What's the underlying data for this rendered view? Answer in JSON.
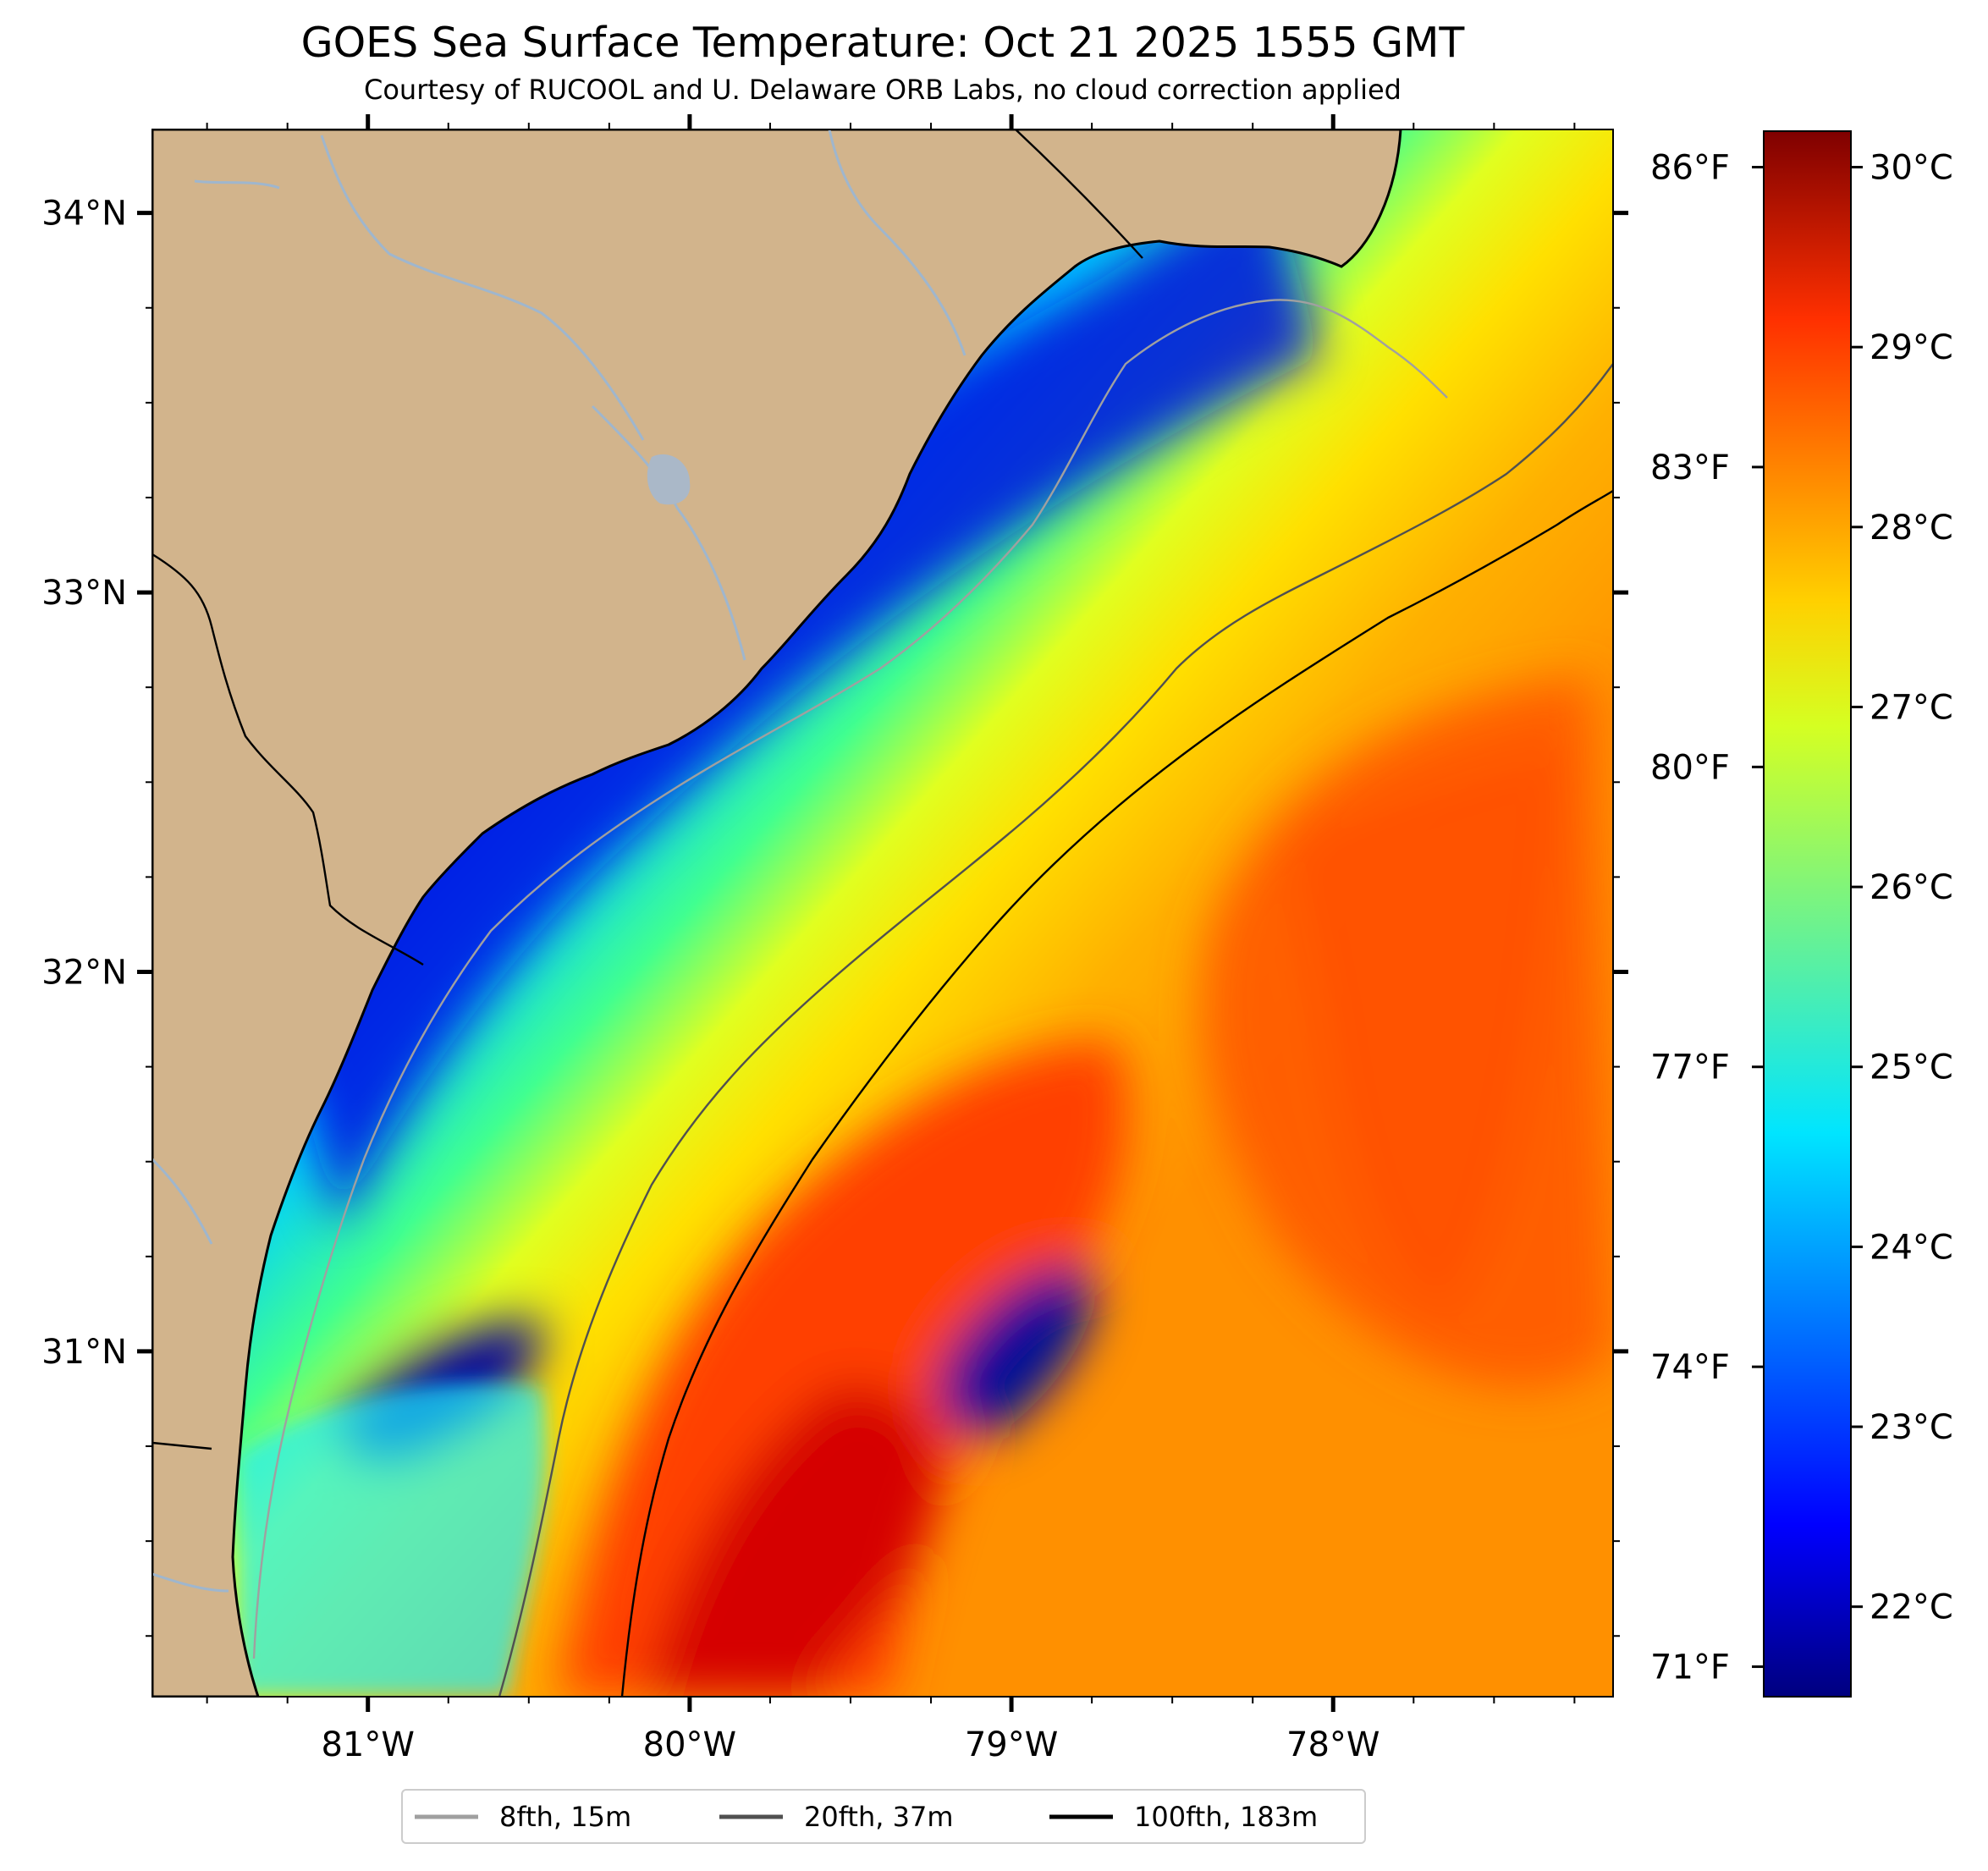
{
  "title": "GOES Sea Surface Temperature: Oct 21 2025 1555 GMT",
  "subtitle": "Courtesy of RUCOOL and U. Delaware ORB Labs, no cloud correction applied",
  "map": {
    "lon_range": [
      -81.67,
      -77.13
    ],
    "lat_range": [
      30.09,
      34.22
    ],
    "lon_ticks": [
      {
        "value": -81,
        "label": "81°W"
      },
      {
        "value": -80,
        "label": "80°W"
      },
      {
        "value": -79,
        "label": "79°W"
      },
      {
        "value": -78,
        "label": "78°W"
      }
    ],
    "lat_ticks": [
      {
        "value": 34,
        "label": "34°N"
      },
      {
        "value": 33,
        "label": "33°N"
      },
      {
        "value": 32,
        "label": "32°N"
      },
      {
        "value": 31,
        "label": "31°N"
      }
    ],
    "land_color": "#d2b48c",
    "river_color": "#9fb6cd",
    "colormap": "jet"
  },
  "colorbar": {
    "celsius_range": [
      21.5,
      30.2
    ],
    "celsius_ticks": [
      {
        "value": 22,
        "label": "22°C"
      },
      {
        "value": 23,
        "label": "23°C"
      },
      {
        "value": 24,
        "label": "24°C"
      },
      {
        "value": 25,
        "label": "25°C"
      },
      {
        "value": 26,
        "label": "26°C"
      },
      {
        "value": 27,
        "label": "27°C"
      },
      {
        "value": 28,
        "label": "28°C"
      },
      {
        "value": 29,
        "label": "29°C"
      },
      {
        "value": 30,
        "label": "30°C"
      }
    ],
    "fahrenheit_ticks": [
      {
        "value": 71,
        "label": "71°F"
      },
      {
        "value": 74,
        "label": "74°F"
      },
      {
        "value": 77,
        "label": "77°F"
      },
      {
        "value": 80,
        "label": "80°F"
      },
      {
        "value": 83,
        "label": "83°F"
      },
      {
        "value": 86,
        "label": "86°F"
      }
    ]
  },
  "legend": {
    "placement": "bottom-center",
    "items": [
      {
        "label": "8fth, 15m",
        "color": "#a0a0a0"
      },
      {
        "label": "20fth, 37m",
        "color": "#505050"
      },
      {
        "label": "100fth, 183m",
        "color": "#000000"
      }
    ]
  }
}
